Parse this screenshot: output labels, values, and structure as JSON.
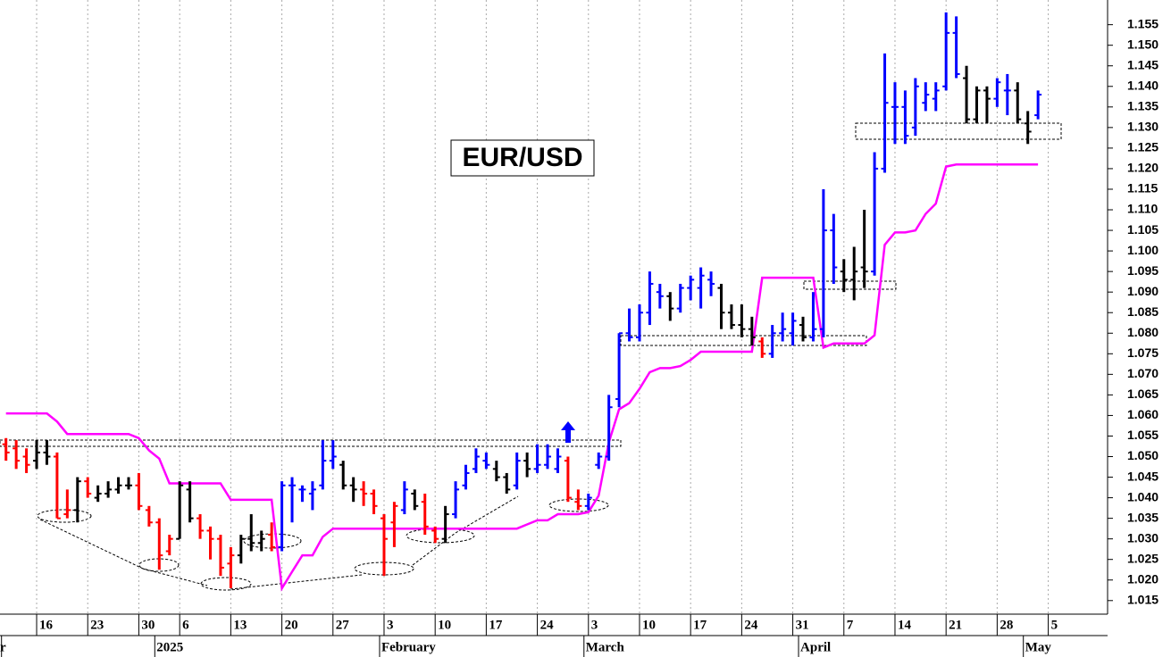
{
  "chart_data": {
    "type": "ohlc",
    "title": "EUR/USD",
    "categories": [
      null,
      null,
      null,
      "16",
      null,
      null,
      null,
      null,
      "23",
      null,
      null,
      null,
      null,
      "30",
      null,
      null,
      null,
      "6",
      null,
      null,
      null,
      null,
      "13",
      null,
      null,
      null,
      null,
      "20",
      null,
      null,
      null,
      null,
      "27",
      null,
      null,
      null,
      null,
      "3",
      null,
      null,
      null,
      null,
      "10",
      null,
      null,
      null,
      null,
      "17",
      null,
      null,
      null,
      null,
      "24",
      null,
      null,
      null,
      null,
      "3",
      null,
      null,
      null,
      null,
      "10",
      null,
      null,
      null,
      null,
      "17",
      null,
      null,
      null,
      null,
      "24",
      null,
      null,
      null,
      null,
      "31",
      null,
      null,
      null,
      null,
      "7",
      null,
      null,
      null,
      null,
      "14",
      null,
      null,
      null,
      null,
      "21",
      null,
      null,
      null,
      null,
      "28",
      null,
      null,
      null,
      null,
      "5",
      null,
      null,
      null,
      null,
      null
    ],
    "month_labels": [
      "r",
      null,
      null,
      null,
      null,
      null,
      null,
      null,
      null,
      null,
      null,
      null,
      null,
      null,
      null,
      "2025",
      null,
      null,
      null,
      null,
      null,
      null,
      null,
      null,
      null,
      null,
      null,
      null,
      null,
      null,
      null,
      null,
      null,
      null,
      null,
      null,
      null,
      "February",
      null,
      null,
      null,
      null,
      null,
      null,
      null,
      null,
      null,
      null,
      null,
      null,
      null,
      null,
      null,
      null,
      null,
      null,
      null,
      "March",
      null,
      null,
      null,
      null,
      null,
      null,
      null,
      null,
      null,
      null,
      null,
      null,
      null,
      null,
      null,
      null,
      null,
      null,
      null,
      null,
      "April",
      null,
      null,
      null,
      null,
      null,
      null,
      null,
      null,
      null,
      null,
      null,
      null,
      null,
      null,
      null,
      null,
      null,
      null,
      null,
      null,
      null,
      "May",
      null,
      null,
      null,
      null,
      null,
      null,
      null
    ],
    "open": [
      1.053,
      1.052,
      1.05,
      1.049,
      1.051,
      1.05,
      1.036,
      1.037,
      1.044,
      1.04,
      1.041,
      1.042,
      1.043,
      1.043,
      1.037,
      1.034,
      1.027,
      1.03,
      1.042,
      1.035,
      1.032,
      1.03,
      1.024,
      1.026,
      1.03,
      1.029,
      1.031,
      1.028,
      1.043,
      1.042,
      1.041,
      1.043,
      1.049,
      1.048,
      1.043,
      1.042,
      1.041,
      1.035,
      1.034,
      1.037,
      1.041,
      1.039,
      1.032,
      1.03,
      1.036,
      1.043,
      1.047,
      1.049,
      1.047,
      1.045,
      1.043,
      1.049,
      1.047,
      1.048,
      1.047,
      1.049,
      1.039,
      1.038,
      1.048,
      1.05,
      1.064,
      1.08,
      1.079,
      1.085,
      1.09,
      1.089,
      1.086,
      1.091,
      1.091,
      1.093,
      1.091,
      1.085,
      1.082,
      1.081,
      1.078,
      1.075,
      1.08,
      1.08,
      1.082,
      1.079,
      1.081,
      1.105,
      1.095,
      1.093,
      1.096,
      1.095,
      1.12,
      1.135,
      1.135,
      1.13,
      1.136,
      1.137,
      1.14,
      1.153,
      1.142,
      1.132,
      1.139,
      1.137,
      1.139,
      1.139,
      1.131,
      1.133,
      null,
      null,
      null,
      null,
      null,
      null
    ],
    "high": [
      1.0545,
      1.054,
      1.052,
      1.054,
      1.054,
      1.051,
      1.042,
      1.045,
      1.045,
      1.043,
      1.044,
      1.045,
      1.045,
      1.046,
      1.038,
      1.035,
      1.031,
      1.044,
      1.044,
      1.036,
      1.033,
      1.031,
      1.028,
      1.031,
      1.036,
      1.032,
      1.034,
      1.044,
      1.045,
      1.043,
      1.044,
      1.054,
      1.054,
      1.049,
      1.045,
      1.044,
      1.042,
      1.036,
      1.039,
      1.044,
      1.042,
      1.041,
      1.033,
      1.038,
      1.044,
      1.048,
      1.052,
      1.051,
      1.049,
      1.046,
      1.051,
      1.051,
      1.053,
      1.053,
      1.052,
      1.05,
      1.042,
      1.041,
      1.051,
      1.065,
      1.08,
      1.086,
      1.087,
      1.095,
      1.092,
      1.09,
      1.092,
      1.094,
      1.096,
      1.095,
      1.092,
      1.087,
      1.087,
      1.084,
      1.079,
      1.082,
      1.085,
      1.085,
      1.084,
      1.09,
      1.115,
      1.109,
      1.098,
      1.101,
      1.11,
      1.124,
      1.148,
      1.141,
      1.139,
      1.142,
      1.141,
      1.141,
      1.158,
      1.157,
      1.145,
      1.14,
      1.14,
      1.142,
      1.143,
      1.141,
      1.134,
      1.139,
      null,
      null,
      null,
      null,
      null,
      null
    ],
    "low": [
      1.049,
      1.047,
      1.046,
      1.047,
      1.048,
      1.035,
      1.035,
      1.034,
      1.04,
      1.039,
      1.04,
      1.041,
      1.042,
      1.037,
      1.033,
      1.0225,
      1.026,
      1.03,
      1.034,
      1.03,
      1.025,
      1.021,
      1.018,
      1.024,
      1.027,
      1.027,
      1.027,
      1.027,
      1.034,
      1.039,
      1.037,
      1.042,
      1.047,
      1.042,
      1.039,
      1.038,
      1.036,
      1.021,
      1.028,
      1.036,
      1.037,
      1.031,
      1.029,
      1.029,
      1.035,
      1.042,
      1.046,
      1.047,
      1.044,
      1.041,
      1.042,
      1.045,
      1.046,
      1.047,
      1.046,
      1.039,
      1.037,
      1.037,
      1.047,
      1.049,
      1.062,
      1.078,
      1.078,
      1.082,
      1.086,
      1.083,
      1.085,
      1.088,
      1.086,
      1.089,
      1.081,
      1.081,
      1.079,
      1.077,
      1.074,
      1.074,
      1.078,
      1.077,
      1.078,
      1.078,
      1.079,
      1.092,
      1.09,
      1.088,
      1.091,
      1.094,
      1.119,
      1.126,
      1.126,
      1.128,
      1.134,
      1.134,
      1.139,
      1.142,
      1.131,
      1.131,
      1.131,
      1.135,
      1.133,
      1.131,
      1.126,
      1.132,
      null,
      null,
      null,
      null,
      null,
      null
    ],
    "close": [
      1.051,
      1.049,
      1.048,
      1.051,
      1.05,
      1.035,
      1.037,
      1.044,
      1.041,
      1.041,
      1.042,
      1.043,
      1.043,
      1.038,
      1.034,
      1.026,
      1.03,
      1.043,
      1.035,
      1.032,
      1.03,
      1.023,
      1.026,
      1.03,
      1.029,
      1.03,
      1.028,
      1.043,
      1.043,
      1.042,
      1.042,
      1.049,
      1.05,
      1.043,
      1.042,
      1.041,
      1.038,
      1.03,
      1.038,
      1.042,
      1.038,
      1.033,
      1.03,
      1.036,
      1.042,
      1.046,
      1.05,
      1.048,
      1.045,
      1.042,
      1.049,
      1.047,
      1.048,
      1.05,
      1.05,
      1.04,
      1.038,
      1.04,
      1.05,
      1.062,
      1.08,
      1.079,
      1.085,
      1.092,
      1.089,
      1.086,
      1.091,
      1.093,
      1.094,
      1.092,
      1.085,
      1.082,
      1.081,
      1.079,
      1.075,
      1.08,
      1.081,
      1.083,
      1.079,
      1.081,
      1.105,
      1.096,
      1.093,
      1.095,
      1.095,
      1.12,
      1.136,
      1.135,
      1.128,
      1.14,
      1.138,
      1.139,
      1.153,
      1.143,
      1.132,
      1.139,
      1.137,
      1.141,
      1.139,
      1.132,
      1.129,
      1.138,
      null,
      null,
      null,
      null,
      null,
      null
    ],
    "bar_colors": [
      "red",
      "red",
      "red",
      "black",
      "black",
      "red",
      "red",
      "black",
      "red",
      "black",
      "black",
      "black",
      "black",
      "red",
      "red",
      "red",
      "red",
      "black",
      "black",
      "red",
      "red",
      "red",
      "red",
      "black",
      "black",
      "black",
      "red",
      "blue",
      "blue",
      "blue",
      "blue",
      "blue",
      "blue",
      "black",
      "black",
      "red",
      "red",
      "red",
      "red",
      "blue",
      "black",
      "red",
      "red",
      "black",
      "blue",
      "blue",
      "blue",
      "blue",
      "black",
      "black",
      "blue",
      "black",
      "blue",
      "blue",
      "blue",
      "red",
      "red",
      "blue",
      "blue",
      "blue",
      "blue",
      "blue",
      "blue",
      "blue",
      "blue",
      "black",
      "blue",
      "blue",
      "blue",
      "blue",
      "black",
      "black",
      "black",
      "black",
      "red",
      "blue",
      "blue",
      "blue",
      "black",
      "blue",
      "blue",
      "blue",
      "black",
      "black",
      "black",
      "blue",
      "blue",
      "blue",
      "blue",
      "blue",
      "blue",
      "blue",
      "blue",
      "blue",
      "black",
      "black",
      "black",
      "blue",
      "blue",
      "black",
      "black",
      "blue",
      null,
      null,
      null,
      null,
      null,
      null
    ],
    "stop_line": {
      "color": "#ff00ff",
      "values": [
        1.0605,
        1.0605,
        1.0605,
        1.0605,
        1.0605,
        1.0585,
        1.0555,
        1.0555,
        1.0555,
        1.0555,
        1.0555,
        1.0555,
        1.0555,
        1.0545,
        1.0515,
        1.0495,
        1.0435,
        1.0435,
        1.0435,
        1.0435,
        1.0435,
        1.0435,
        1.0395,
        1.0395,
        1.0395,
        1.0395,
        1.0395,
        1.018,
        1.022,
        1.026,
        1.026,
        1.0305,
        1.0325,
        1.0325,
        1.0325,
        1.0325,
        1.0325,
        1.0325,
        1.0325,
        1.0325,
        1.0325,
        1.0325,
        1.0325,
        1.0325,
        1.0325,
        1.0325,
        1.0325,
        1.0325,
        1.0325,
        1.0325,
        1.0325,
        1.0335,
        1.0345,
        1.0345,
        1.036,
        1.036,
        1.036,
        1.0365,
        1.0405,
        1.0535,
        1.0615,
        1.063,
        1.0665,
        1.0705,
        1.0715,
        1.0715,
        1.072,
        1.0735,
        1.0755,
        1.0755,
        1.0755,
        1.0755,
        1.0755,
        1.0755,
        1.0935,
        1.0935,
        1.0935,
        1.0935,
        1.0935,
        1.0935,
        1.0765,
        1.0775,
        1.0775,
        1.0775,
        1.0775,
        1.0795,
        1.1015,
        1.1045,
        1.1045,
        1.105,
        1.109,
        1.1115,
        1.1205,
        1.121,
        1.121,
        1.121,
        1.121,
        1.121,
        1.121,
        1.121,
        1.121,
        1.121,
        null,
        null,
        null,
        null,
        null,
        null
      ]
    },
    "ylim": [
      1.0117,
      1.161
    ],
    "yticks": [
      1.015,
      {
        "value": 1.02,
        "label": "1.020"
      },
      1.025,
      {
        "value": 1.03,
        "label": "1.030"
      },
      1.035,
      {
        "value": 1.04,
        "label": "1.040"
      },
      1.045,
      {
        "value": 1.05,
        "label": "1.050"
      },
      1.055,
      {
        "value": 1.06,
        "label": "1.060"
      },
      1.065,
      {
        "value": 1.07,
        "label": "1.070"
      },
      1.075,
      {
        "value": 1.08,
        "label": "1.080"
      },
      1.085,
      {
        "value": 1.09,
        "label": "1.090"
      },
      1.095,
      {
        "value": 1.1,
        "label": "1.100"
      },
      1.105,
      {
        "value": 1.11,
        "label": "1.110"
      },
      1.115,
      {
        "value": 1.12,
        "label": "1.120"
      },
      1.125,
      {
        "value": 1.13,
        "label": "1.130"
      },
      1.135,
      {
        "value": 1.14,
        "label": "1.140"
      },
      1.145,
      {
        "value": 1.15,
        "label": "1.150"
      },
      1.155
    ],
    "grid": true
  }
}
